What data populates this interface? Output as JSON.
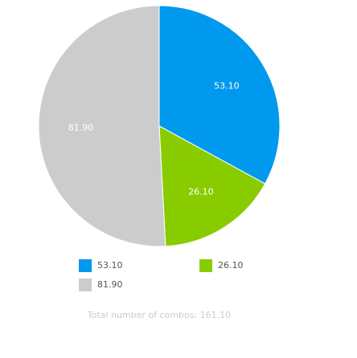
{
  "chart_data": {
    "type": "pie",
    "categories": [
      "53.10",
      "26.10",
      "81.90"
    ],
    "values": [
      53.1,
      26.1,
      81.9
    ],
    "value_labels": [
      "53.10",
      "26.10",
      "81.90"
    ],
    "colors": [
      "#0099ee",
      "#88cc00",
      "#cccccc"
    ],
    "caption": "Total number of combos: 161.10"
  }
}
